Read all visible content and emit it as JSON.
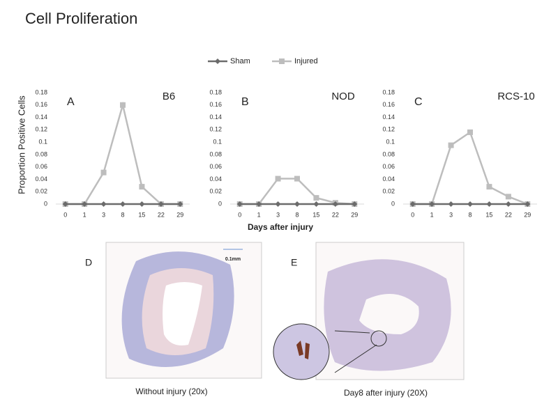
{
  "title": "Cell Proliferation",
  "y_label": "Proportion Positive Cells",
  "x_label": "Days after injury",
  "chart_data": [
    {
      "type": "line",
      "panel": "A",
      "title": "B6",
      "categories": [
        "0",
        "1",
        "3",
        "8",
        "15",
        "22",
        "29"
      ],
      "series": [
        {
          "name": "Sham",
          "color": "#6b6b6b",
          "marker": "diamond",
          "values": [
            0,
            0,
            0,
            0,
            0,
            0,
            0
          ]
        },
        {
          "name": "Injured",
          "color": "#bdbdbd",
          "marker": "square",
          "values": [
            0,
            0,
            0.051,
            0.16,
            0.028,
            0,
            0
          ]
        }
      ],
      "ylim": [
        0,
        0.18
      ],
      "yticks": [
        0,
        0.02,
        0.04,
        0.06,
        0.08,
        0.1,
        0.12,
        0.14,
        0.16,
        0.18
      ]
    },
    {
      "type": "line",
      "panel": "B",
      "title": "NOD",
      "categories": [
        "0",
        "1",
        "3",
        "8",
        "15",
        "22",
        "29"
      ],
      "series": [
        {
          "name": "Sham",
          "color": "#6b6b6b",
          "marker": "diamond",
          "values": [
            0,
            0,
            0,
            0,
            0,
            0,
            0
          ]
        },
        {
          "name": "Injured",
          "color": "#bdbdbd",
          "marker": "square",
          "values": [
            0,
            0,
            0.041,
            0.041,
            0.01,
            0.002,
            0
          ]
        }
      ],
      "ylim": [
        0,
        0.18
      ],
      "yticks": [
        0,
        0.02,
        0.04,
        0.06,
        0.08,
        0.1,
        0.12,
        0.14,
        0.16,
        0.18
      ]
    },
    {
      "type": "line",
      "panel": "C",
      "title": "RCS-10",
      "categories": [
        "0",
        "1",
        "3",
        "8",
        "15",
        "22",
        "29"
      ],
      "series": [
        {
          "name": "Sham",
          "color": "#6b6b6b",
          "marker": "diamond",
          "values": [
            0,
            0,
            0,
            0,
            0,
            0,
            0
          ]
        },
        {
          "name": "Injured",
          "color": "#bdbdbd",
          "marker": "square",
          "values": [
            0,
            0,
            0.095,
            0.116,
            0.028,
            0.012,
            0
          ]
        }
      ],
      "ylim": [
        0,
        0.18
      ],
      "yticks": [
        0,
        0.02,
        0.04,
        0.06,
        0.08,
        0.1,
        0.12,
        0.14,
        0.16,
        0.18
      ]
    }
  ],
  "images": [
    {
      "label": "D",
      "caption": "Without injury (20x)",
      "scale_bar": "0.1mm"
    },
    {
      "label": "E",
      "caption": "Day8  after injury (20X)"
    }
  ]
}
